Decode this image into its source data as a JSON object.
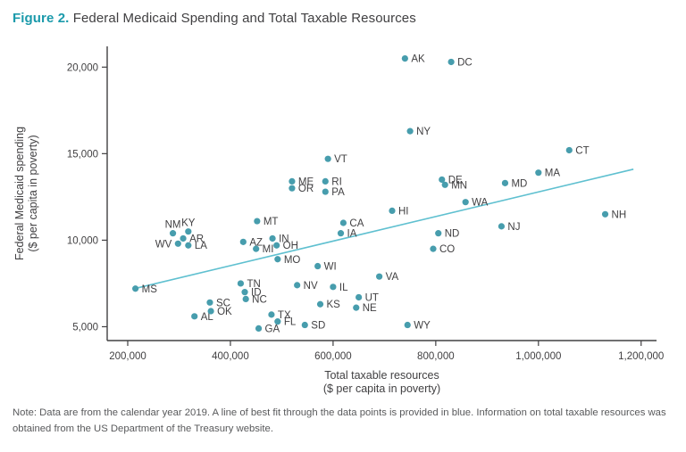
{
  "figure": {
    "label": "Figure 2.",
    "title": " Federal Medicaid Spending and Total Taxable Resources"
  },
  "note": "Note: Data are from the calendar year 2019. A line of best fit through the data points is provided in blue. Information on total taxable resources was obtained from the US Department of the Treasury website.",
  "chart_data": {
    "type": "scatter",
    "title": "Federal Medicaid Spending and Total Taxable Resources",
    "xlabel": [
      "Total taxable resources",
      "($ per capita in poverty)"
    ],
    "ylabel": [
      "Federal Medicaid spending",
      "($ per capita in poverty)"
    ],
    "xlim": [
      160000,
      1230000
    ],
    "ylim": [
      4200,
      21200
    ],
    "x_ticks": [
      200000,
      400000,
      600000,
      800000,
      1000000,
      1200000
    ],
    "y_ticks": [
      5000,
      10000,
      15000,
      20000
    ],
    "grid": false,
    "point_color": "#479DAD",
    "line_color": "#5FC0D0",
    "axis_color": "#414042",
    "trend_line": {
      "x1": 220000,
      "y1": 7250,
      "x2": 1185000,
      "y2": 14100
    },
    "points": [
      {
        "state": "MS",
        "x": 215000,
        "y": 7200
      },
      {
        "state": "AL",
        "x": 330000,
        "y": 5600
      },
      {
        "state": "SC",
        "x": 360000,
        "y": 6400
      },
      {
        "state": "OK",
        "x": 362000,
        "y": 5900
      },
      {
        "state": "NM",
        "x": 288000,
        "y": 10400,
        "label_pos": "above"
      },
      {
        "state": "KY",
        "x": 318000,
        "y": 10500,
        "label_pos": "above"
      },
      {
        "state": "AR",
        "x": 308000,
        "y": 10100
      },
      {
        "state": "WV",
        "x": 298000,
        "y": 9800,
        "label_pos": "left"
      },
      {
        "state": "LA",
        "x": 318000,
        "y": 9700
      },
      {
        "state": "AZ",
        "x": 425000,
        "y": 9900
      },
      {
        "state": "MI",
        "x": 450000,
        "y": 9500
      },
      {
        "state": "MT",
        "x": 452000,
        "y": 11100
      },
      {
        "state": "IN",
        "x": 482000,
        "y": 10100
      },
      {
        "state": "OH",
        "x": 490000,
        "y": 9700
      },
      {
        "state": "MO",
        "x": 492000,
        "y": 8900
      },
      {
        "state": "TN",
        "x": 420000,
        "y": 7500
      },
      {
        "state": "ID",
        "x": 428000,
        "y": 7000
      },
      {
        "state": "NC",
        "x": 430000,
        "y": 6600
      },
      {
        "state": "GA",
        "x": 455000,
        "y": 4900
      },
      {
        "state": "TX",
        "x": 480000,
        "y": 5700
      },
      {
        "state": "FL",
        "x": 492000,
        "y": 5300
      },
      {
        "state": "SD",
        "x": 545000,
        "y": 5100
      },
      {
        "state": "NV",
        "x": 530000,
        "y": 7400
      },
      {
        "state": "KS",
        "x": 575000,
        "y": 6300
      },
      {
        "state": "WI",
        "x": 570000,
        "y": 8500
      },
      {
        "state": "IL",
        "x": 600000,
        "y": 7300
      },
      {
        "state": "ME",
        "x": 520000,
        "y": 13400
      },
      {
        "state": "OR",
        "x": 520000,
        "y": 13000
      },
      {
        "state": "VT",
        "x": 590000,
        "y": 14700
      },
      {
        "state": "RI",
        "x": 585000,
        "y": 13400
      },
      {
        "state": "PA",
        "x": 585000,
        "y": 12800
      },
      {
        "state": "CA",
        "x": 620000,
        "y": 11000
      },
      {
        "state": "IA",
        "x": 615000,
        "y": 10400
      },
      {
        "state": "NE",
        "x": 645000,
        "y": 6100
      },
      {
        "state": "UT",
        "x": 650000,
        "y": 6700
      },
      {
        "state": "VA",
        "x": 690000,
        "y": 7900
      },
      {
        "state": "WY",
        "x": 745000,
        "y": 5100
      },
      {
        "state": "NY",
        "x": 750000,
        "y": 16300
      },
      {
        "state": "HI",
        "x": 715000,
        "y": 11700
      },
      {
        "state": "AK",
        "x": 740000,
        "y": 20500
      },
      {
        "state": "DC",
        "x": 830000,
        "y": 20300
      },
      {
        "state": "DE",
        "x": 812000,
        "y": 13500
      },
      {
        "state": "MN",
        "x": 818000,
        "y": 13200
      },
      {
        "state": "WA",
        "x": 858000,
        "y": 12200
      },
      {
        "state": "ND",
        "x": 805000,
        "y": 10400
      },
      {
        "state": "CO",
        "x": 795000,
        "y": 9500
      },
      {
        "state": "MD",
        "x": 935000,
        "y": 13300
      },
      {
        "state": "NJ",
        "x": 928000,
        "y": 10800
      },
      {
        "state": "MA",
        "x": 1000000,
        "y": 13900
      },
      {
        "state": "CT",
        "x": 1060000,
        "y": 15200
      },
      {
        "state": "NH",
        "x": 1130000,
        "y": 11500
      }
    ]
  }
}
